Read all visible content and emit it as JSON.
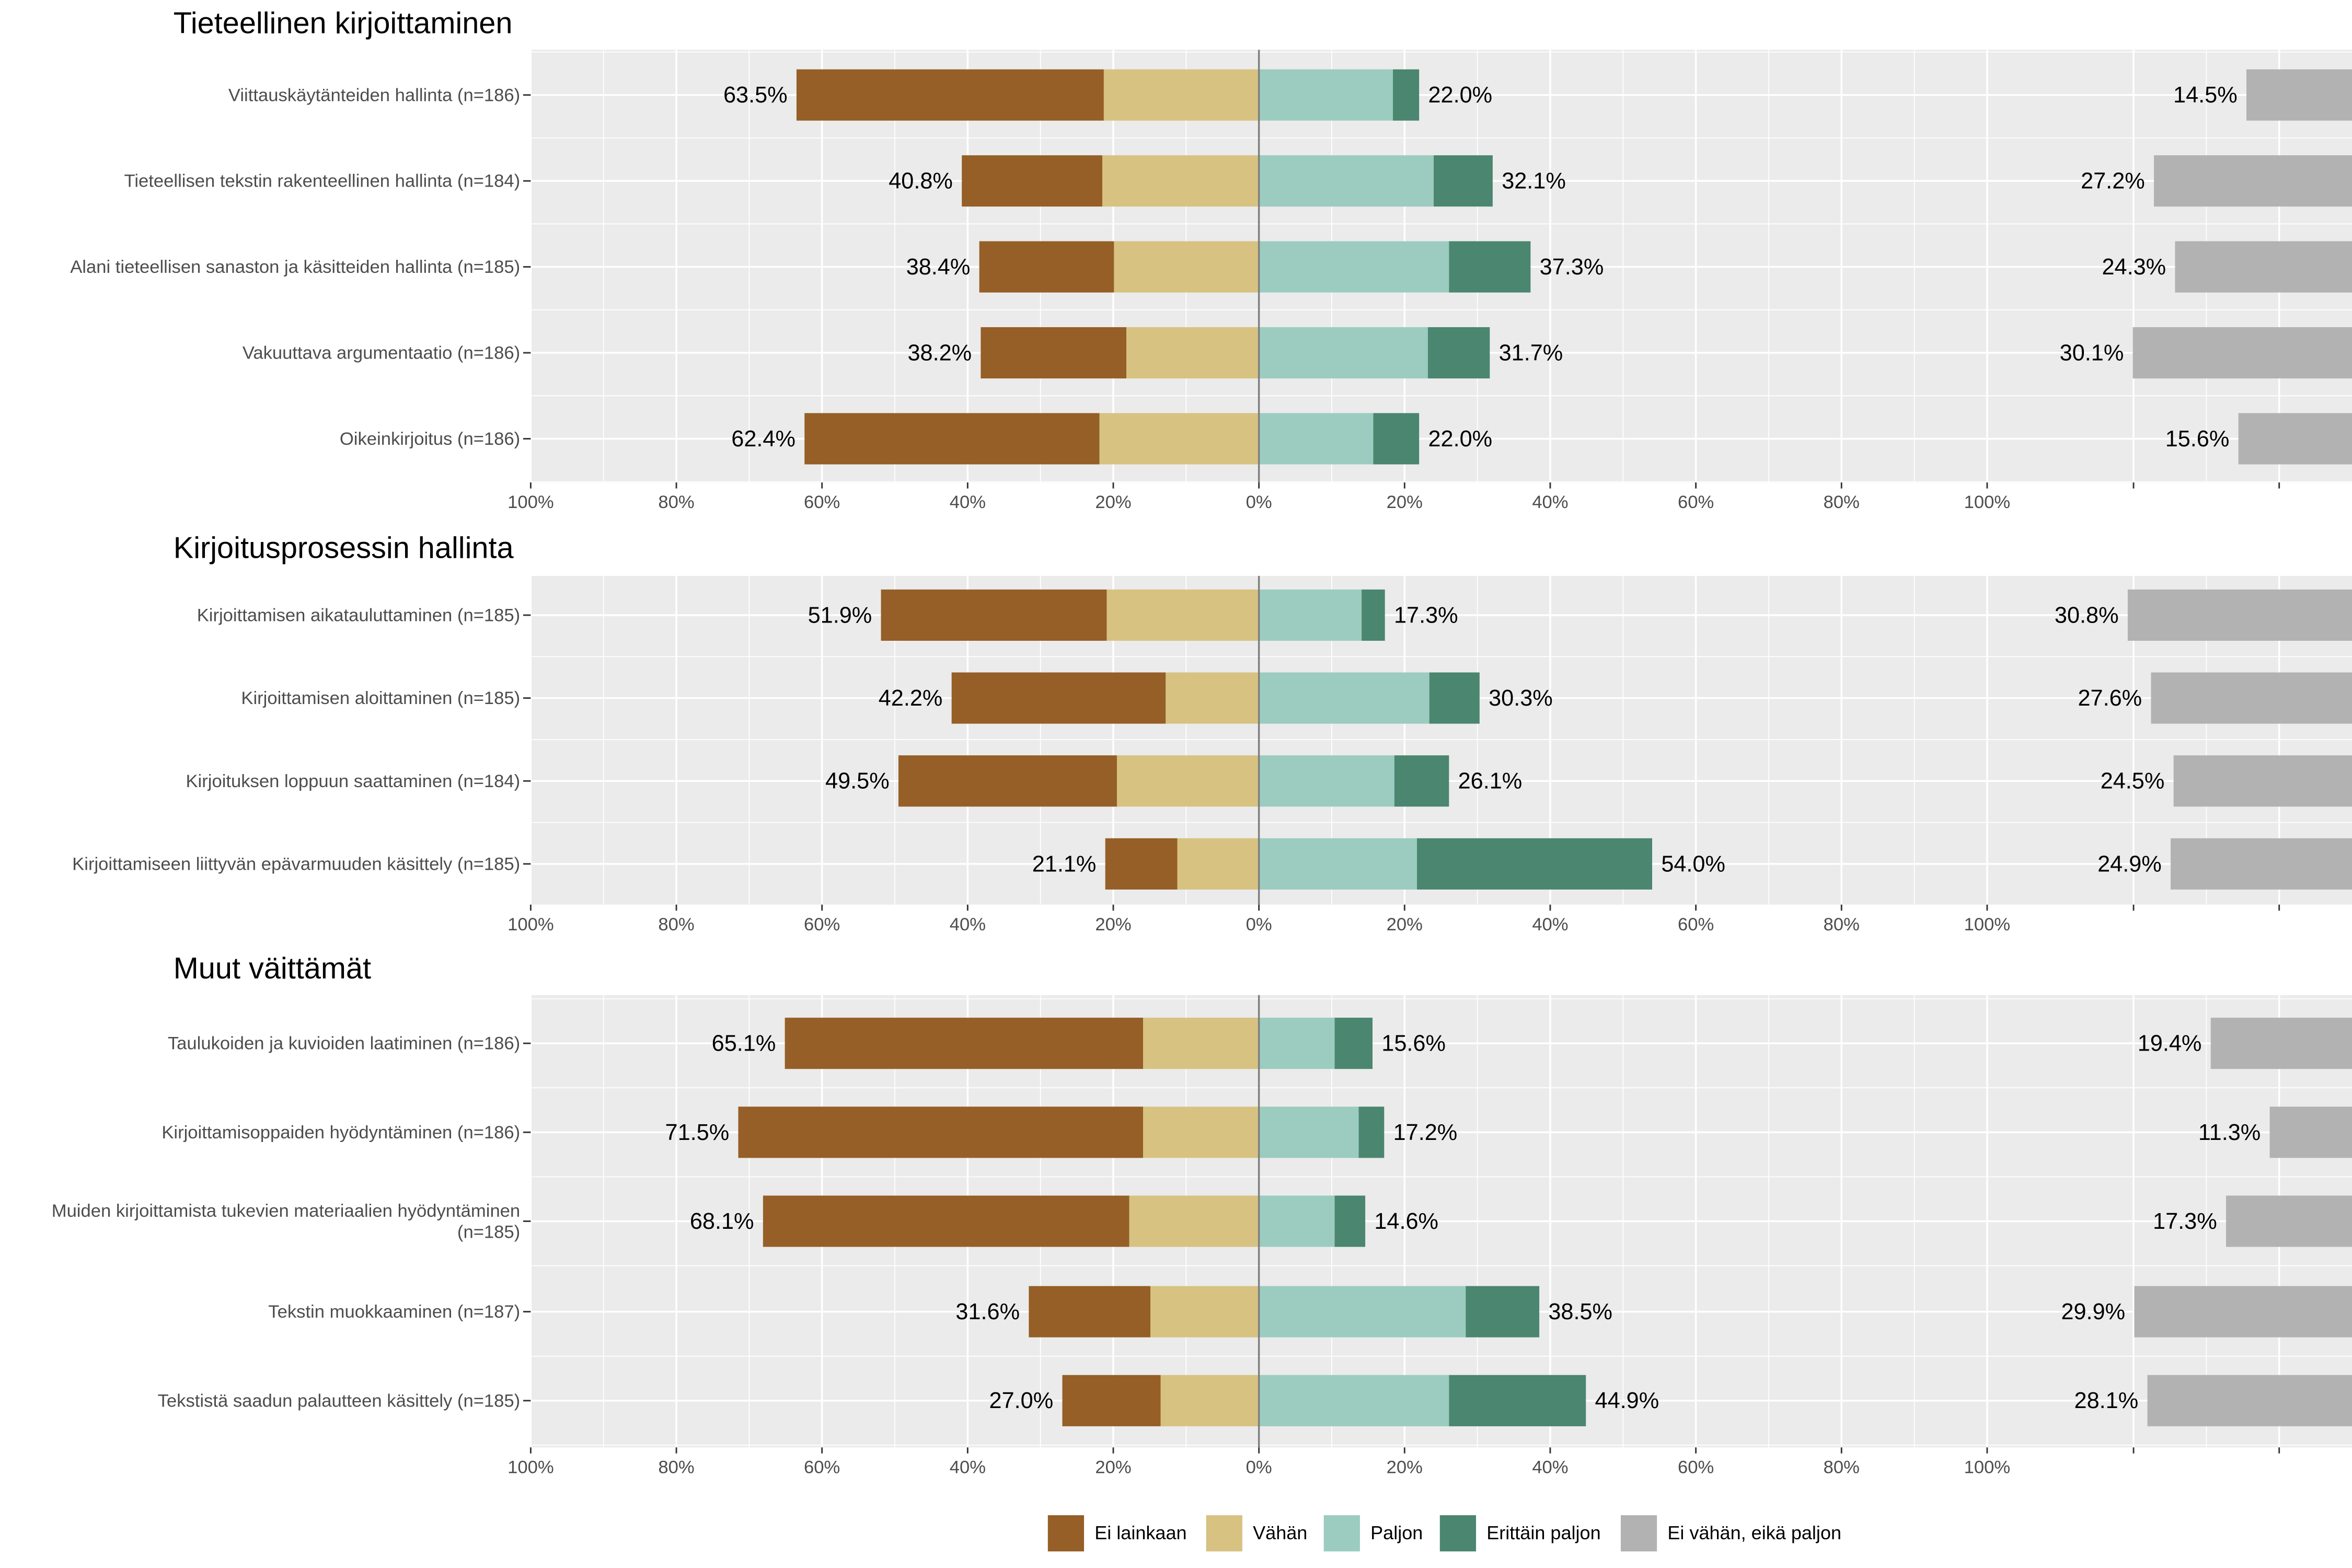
{
  "chart_data": {
    "type": "bar",
    "subtype": "diverging-stacked-likert",
    "legend_position": "bottom",
    "grid": true,
    "xlim": [
      -100,
      100
    ],
    "x_tick_labels": [
      "100%",
      "80%",
      "60%",
      "40%",
      "20%",
      "0%",
      "20%",
      "40%",
      "60%",
      "80%",
      "100%"
    ],
    "legend": [
      {
        "name": "Ei lainkaan",
        "color": "#955F27"
      },
      {
        "name": "Vähän",
        "color": "#D7C281"
      },
      {
        "name": "Paljon",
        "color": "#9BCCBF"
      },
      {
        "name": "Erittäin paljon",
        "color": "#4A8670"
      },
      {
        "name": "Ei vähän, eikä paljon",
        "color": "#B2B2B2"
      }
    ],
    "panels": [
      {
        "title": "Tieteellinen kirjoittaminen",
        "rows": [
          {
            "label": [
              "Viittauskäytänteiden hallinta (n=186)"
            ],
            "ei_lainkaan": 42.2,
            "vahan": 21.3,
            "paljon": 18.4,
            "erittain_paljon": 3.6,
            "neutral": 14.5,
            "low_label": "63.5%",
            "high_label": "22.0%",
            "neutral_label": "14.5%"
          },
          {
            "label": [
              "Tieteellisen tekstin rakenteellinen hallinta (n=184)"
            ],
            "ei_lainkaan": 19.3,
            "vahan": 21.5,
            "paljon": 24.0,
            "erittain_paljon": 8.1,
            "neutral": 27.2,
            "low_label": "40.8%",
            "high_label": "32.1%",
            "neutral_label": "27.2%"
          },
          {
            "label": [
              "Alani tieteellisen sanaston ja käsitteiden hallinta (n=185)"
            ],
            "ei_lainkaan": 18.5,
            "vahan": 19.9,
            "paljon": 26.1,
            "erittain_paljon": 11.2,
            "neutral": 24.3,
            "low_label": "38.4%",
            "high_label": "37.3%",
            "neutral_label": "24.3%"
          },
          {
            "label": [
              "Vakuuttava argumentaatio (n=186)"
            ],
            "ei_lainkaan": 20.0,
            "vahan": 18.2,
            "paljon": 23.2,
            "erittain_paljon": 8.5,
            "neutral": 30.1,
            "low_label": "38.2%",
            "high_label": "31.7%",
            "neutral_label": "30.1%"
          },
          {
            "label": [
              "Oikeinkirjoitus (n=186)"
            ],
            "ei_lainkaan": 40.5,
            "vahan": 21.9,
            "paljon": 15.7,
            "erittain_paljon": 6.3,
            "neutral": 15.6,
            "low_label": "62.4%",
            "high_label": "22.0%",
            "neutral_label": "15.6%"
          }
        ]
      },
      {
        "title": "Kirjoitusprosessin hallinta",
        "rows": [
          {
            "label": [
              "Kirjoittamisen aikatauluttaminen (n=185)"
            ],
            "ei_lainkaan": 31.0,
            "vahan": 20.9,
            "paljon": 14.1,
            "erittain_paljon": 3.2,
            "neutral": 30.8,
            "low_label": "51.9%",
            "high_label": "17.3%",
            "neutral_label": "30.8%"
          },
          {
            "label": [
              "Kirjoittamisen aloittaminen (n=185)"
            ],
            "ei_lainkaan": 29.4,
            "vahan": 12.8,
            "paljon": 23.4,
            "erittain_paljon": 6.9,
            "neutral": 27.6,
            "low_label": "42.2%",
            "high_label": "30.3%",
            "neutral_label": "27.6%"
          },
          {
            "label": [
              "Kirjoituksen loppuun saattaminen (n=184)"
            ],
            "ei_lainkaan": 30.0,
            "vahan": 19.5,
            "paljon": 18.6,
            "erittain_paljon": 7.5,
            "neutral": 24.5,
            "low_label": "49.5%",
            "high_label": "26.1%",
            "neutral_label": "24.5%"
          },
          {
            "label": [
              "Kirjoittamiseen liittyvän epävarmuuden käsittely (n=185)"
            ],
            "ei_lainkaan": 9.9,
            "vahan": 11.2,
            "paljon": 21.7,
            "erittain_paljon": 32.3,
            "neutral": 24.9,
            "low_label": "21.1%",
            "high_label": "54.0%",
            "neutral_label": "24.9%"
          }
        ]
      },
      {
        "title": "Muut väittämät",
        "rows": [
          {
            "label": [
              "Taulukoiden ja kuvioiden laatiminen (n=186)"
            ],
            "ei_lainkaan": 49.2,
            "vahan": 15.9,
            "paljon": 10.4,
            "erittain_paljon": 5.2,
            "neutral": 19.4,
            "low_label": "65.1%",
            "high_label": "15.6%",
            "neutral_label": "19.4%"
          },
          {
            "label": [
              "Kirjoittamisoppaiden hyödyntäminen (n=186)"
            ],
            "ei_lainkaan": 55.6,
            "vahan": 15.9,
            "paljon": 13.7,
            "erittain_paljon": 3.5,
            "neutral": 11.3,
            "low_label": "71.5%",
            "high_label": "17.2%",
            "neutral_label": "11.3%"
          },
          {
            "label": [
              "Muiden kirjoittamista tukevien materiaalien hyödyntäminen",
              "(n=185)"
            ],
            "ei_lainkaan": 50.3,
            "vahan": 17.8,
            "paljon": 10.4,
            "erittain_paljon": 4.2,
            "neutral": 17.3,
            "low_label": "68.1%",
            "high_label": "14.6%",
            "neutral_label": "17.3%"
          },
          {
            "label": [
              "Tekstin muokkaaminen (n=187)"
            ],
            "ei_lainkaan": 16.7,
            "vahan": 14.9,
            "paljon": 28.4,
            "erittain_paljon": 10.1,
            "neutral": 29.9,
            "low_label": "31.6%",
            "high_label": "38.5%",
            "neutral_label": "29.9%"
          },
          {
            "label": [
              "Tekstistä saadun palautteen käsittely (n=185)"
            ],
            "ei_lainkaan": 13.5,
            "vahan": 13.5,
            "paljon": 26.1,
            "erittain_paljon": 18.8,
            "neutral": 28.1,
            "low_label": "27.0%",
            "high_label": "44.9%",
            "neutral_label": "28.1%"
          }
        ]
      }
    ]
  }
}
